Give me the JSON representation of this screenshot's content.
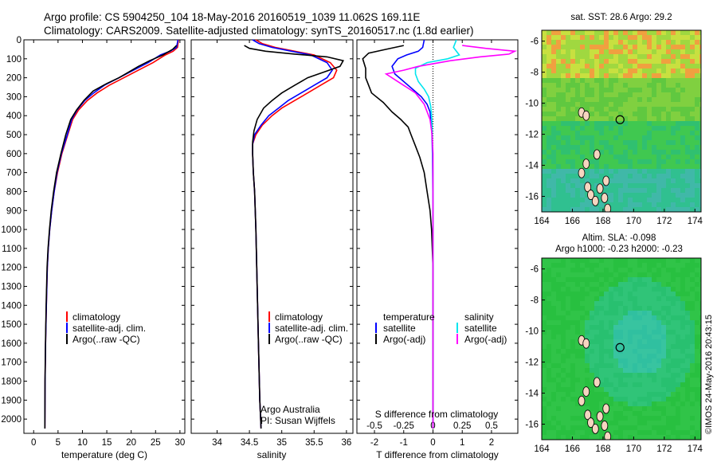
{
  "header": {
    "title_line1": "Argo profile: CS 5904250_104 18-May-2016 20160519_1039 11.062S 169.11E",
    "title_line2": "Climatology: CARS2009. Satellite-adjusted climatology: synTS_20160517.nc (1.8d earlier)"
  },
  "colors": {
    "climatology": "#ff0000",
    "satellite_adj": "#0000ff",
    "argo": "#000000",
    "satellite_sal": "#00e5ee",
    "argo_sal": "#ff00ff"
  },
  "chart_data": [
    {
      "type": "line",
      "id": "temperature",
      "xlabel": "temperature (deg C)",
      "xlim": [
        -2,
        31
      ],
      "xticks": [
        0,
        5,
        10,
        15,
        20,
        25,
        30
      ],
      "ylim": [
        2075,
        0
      ],
      "yticks": [
        0,
        100,
        200,
        300,
        400,
        500,
        600,
        700,
        800,
        900,
        1000,
        1100,
        1200,
        1300,
        1400,
        1500,
        1600,
        1700,
        1800,
        1900,
        2000
      ],
      "legend": [
        "climatology",
        "satellite-adj. clim.",
        "Argo(..raw -QC)"
      ],
      "series": [
        {
          "name": "climatology",
          "color": "#ff0000",
          "x": [
            29.7,
            29.5,
            28.6,
            27.0,
            24.5,
            21.5,
            18.5,
            15.5,
            13.0,
            11.0,
            9.2,
            8.0,
            7.0,
            5.8,
            4.9,
            4.2,
            3.7,
            3.3,
            3.0,
            2.8,
            2.6,
            2.45,
            2.35,
            2.3
          ],
          "y": [
            0,
            40,
            60,
            80,
            120,
            160,
            200,
            240,
            280,
            320,
            370,
            420,
            500,
            600,
            700,
            800,
            900,
            1000,
            1100,
            1200,
            1400,
            1600,
            1800,
            2050
          ]
        },
        {
          "name": "satellite-adj. clim.",
          "color": "#0000ff",
          "x": [
            29.6,
            29.3,
            28.0,
            26.0,
            23.5,
            20.5,
            17.5,
            14.5,
            12.3,
            10.5,
            8.9,
            7.8,
            6.9,
            5.7,
            4.8,
            4.2,
            3.7,
            3.3,
            3.0,
            2.8,
            2.6,
            2.45,
            2.35,
            2.3
          ],
          "y": [
            0,
            40,
            60,
            80,
            120,
            160,
            200,
            240,
            280,
            320,
            370,
            420,
            500,
            600,
            700,
            800,
            900,
            1000,
            1100,
            1200,
            1400,
            1600,
            1800,
            2050
          ]
        },
        {
          "name": "Argo(..raw -QC)",
          "color": "#000000",
          "x": [
            29.3,
            28.5,
            26.5,
            23.8,
            21.5,
            19.5,
            17.5,
            15.0,
            12.2,
            10.3,
            8.8,
            7.6,
            6.6,
            5.6,
            4.7,
            4.1,
            3.6,
            3.25,
            2.95,
            2.75,
            2.55,
            2.42,
            2.33,
            2.3
          ],
          "y": [
            30,
            50,
            80,
            110,
            140,
            170,
            200,
            230,
            270,
            320,
            370,
            420,
            500,
            600,
            700,
            800,
            900,
            1000,
            1100,
            1200,
            1400,
            1600,
            1800,
            2050
          ]
        }
      ]
    },
    {
      "type": "line",
      "id": "salinity",
      "xlabel": "salinity",
      "xlim": [
        33.6,
        36.1
      ],
      "xticks": [
        34,
        34.5,
        35,
        35.5,
        36
      ],
      "xtick_labels": [
        "34",
        "34.5",
        "35",
        "35.5",
        "36"
      ],
      "ylim": [
        2075,
        0
      ],
      "legend": [
        "climatology",
        "satellite-adj. clim.",
        "Argo(..raw -QC)"
      ],
      "annotation": [
        "Argo Australia",
        "PI: Susan Wijffels"
      ],
      "series": [
        {
          "name": "climatology",
          "color": "#ff0000",
          "x": [
            34.6,
            34.7,
            34.9,
            35.2,
            35.5,
            35.75,
            35.85,
            35.8,
            35.6,
            35.4,
            35.2,
            35.0,
            34.85,
            34.7,
            34.6,
            34.55,
            34.55,
            34.56,
            34.58,
            34.6,
            34.62,
            34.64,
            34.66,
            34.68
          ],
          "y": [
            0,
            20,
            40,
            60,
            80,
            120,
            160,
            200,
            240,
            280,
            320,
            360,
            400,
            450,
            500,
            550,
            600,
            700,
            800,
            1000,
            1300,
            1600,
            1900,
            2050
          ]
        },
        {
          "name": "satellite-adj. clim.",
          "color": "#0000ff",
          "x": [
            34.55,
            34.65,
            34.85,
            35.15,
            35.45,
            35.7,
            35.78,
            35.7,
            35.5,
            35.3,
            35.1,
            34.95,
            34.8,
            34.68,
            34.58,
            34.55,
            34.55,
            34.56,
            34.58,
            34.6,
            34.62,
            34.64,
            34.66,
            34.68
          ],
          "y": [
            0,
            20,
            40,
            60,
            80,
            120,
            160,
            200,
            240,
            280,
            320,
            360,
            400,
            450,
            500,
            550,
            600,
            700,
            800,
            1000,
            1300,
            1600,
            1900,
            2050
          ]
        },
        {
          "name": "Argo(..raw -QC)",
          "color": "#000000",
          "x": [
            34.42,
            34.5,
            34.75,
            35.2,
            35.7,
            35.95,
            35.9,
            35.65,
            35.4,
            35.2,
            35.0,
            34.85,
            34.72,
            34.62,
            34.57,
            34.55,
            34.55,
            34.56,
            34.58,
            34.6,
            34.62,
            34.64,
            34.66,
            34.68
          ],
          "y": [
            30,
            45,
            60,
            75,
            90,
            110,
            140,
            170,
            200,
            240,
            280,
            320,
            360,
            420,
            480,
            540,
            600,
            700,
            800,
            1000,
            1300,
            1600,
            1900,
            2050
          ]
        }
      ]
    },
    {
      "type": "line",
      "id": "difference",
      "xlabel": "T difference from climatology",
      "xlabel_top": "S difference from climatology",
      "xlim": [
        -2.6,
        2.9
      ],
      "xticks": [
        -2,
        -1,
        0,
        1,
        2
      ],
      "top_ticks": [
        -0.5,
        -0.25,
        0,
        0.25,
        0.5
      ],
      "top_tick_labels": [
        "-0.5",
        "-0.25",
        "0",
        "0.25",
        "0.5"
      ],
      "ylim": [
        2075,
        0
      ],
      "legend": {
        "temperature_header": "temperature",
        "salinity_header": "salinity",
        "temperature_items": [
          "satellite",
          "Argo(-adj)"
        ],
        "salinity_items": [
          "satellite",
          "Argo(-adj)"
        ]
      },
      "series": [
        {
          "name": "satellite",
          "group": "temperature",
          "color": "#0000ff",
          "x": [
            -0.3,
            -0.35,
            -0.5,
            -0.9,
            -1.2,
            -1.4,
            -1.3,
            -1.0,
            -0.7,
            -0.4,
            -0.2,
            -0.1,
            -0.05,
            -0.03,
            -0.02,
            -0.01,
            0,
            0,
            0
          ],
          "y": [
            0,
            40,
            60,
            80,
            100,
            140,
            180,
            220,
            260,
            300,
            340,
            380,
            450,
            520,
            600,
            700,
            900,
            1400,
            2050
          ]
        },
        {
          "name": "Argo(-adj)",
          "group": "temperature",
          "color": "#000000",
          "x": [
            -1.0,
            -1.6,
            -2.2,
            -2.4,
            -2.3,
            -2.3,
            -2.2,
            -2.1,
            -1.7,
            -1.4,
            -1.1,
            -0.85,
            -0.75,
            -0.6,
            -0.45,
            -0.3,
            -0.2,
            -0.1,
            -0.05,
            0,
            0
          ],
          "y": [
            30,
            50,
            70,
            100,
            150,
            200,
            240,
            280,
            330,
            380,
            420,
            460,
            500,
            560,
            620,
            700,
            800,
            900,
            1000,
            1200,
            2050
          ]
        },
        {
          "name": "satellite",
          "group": "salinity",
          "color": "#00e5ee",
          "x": [
            0.8,
            0.7,
            0.9,
            0.5,
            -0.2,
            -0.6,
            -0.6,
            -0.5,
            -0.3,
            -0.15,
            -0.08,
            -0.05,
            -0.03,
            -0.02,
            -0.01,
            0,
            0,
            0
          ],
          "y": [
            0,
            40,
            80,
            100,
            120,
            150,
            180,
            220,
            260,
            300,
            350,
            400,
            460,
            520,
            600,
            700,
            1000,
            2050
          ]
        },
        {
          "name": "Argo(-adj)",
          "group": "salinity",
          "color": "#ff00ff",
          "x": [
            1.0,
            1.8,
            2.8,
            2.6,
            1.6,
            0.6,
            -0.5,
            -1.0,
            -1.6,
            -1.2,
            -0.6,
            -0.3,
            -0.1,
            -0.03,
            0,
            0,
            0
          ],
          "y": [
            30,
            45,
            60,
            75,
            90,
            110,
            140,
            160,
            180,
            220,
            280,
            340,
            420,
            500,
            600,
            800,
            2050
          ]
        }
      ]
    },
    {
      "type": "heatmap",
      "id": "sst_map",
      "title": "sat. SST: 28.6  Argo: 29.2",
      "xticks": [
        164,
        166,
        168,
        170,
        172,
        174
      ],
      "yticks": [
        -6,
        -8,
        -10,
        -12,
        -14,
        -16
      ],
      "xlim": [
        164,
        174.4
      ],
      "ylim": [
        -17,
        -5.3
      ],
      "marker": {
        "lon": 169.11,
        "lat": -11.062
      }
    },
    {
      "type": "heatmap",
      "id": "sla_map",
      "title_line1": "Altim. SLA: -0.098",
      "title_line2": "Argo h1000: -0.23  h2000: -0.23",
      "xticks": [
        164,
        166,
        168,
        170,
        172,
        174
      ],
      "yticks": [
        -6,
        -8,
        -10,
        -12,
        -14,
        -16
      ],
      "xlim": [
        164,
        174.4
      ],
      "ylim": [
        -17,
        -5.3
      ],
      "marker": {
        "lon": 169.11,
        "lat": -11.062
      }
    }
  ],
  "credit": "©IMOS 24-May-2016 20:43:15"
}
